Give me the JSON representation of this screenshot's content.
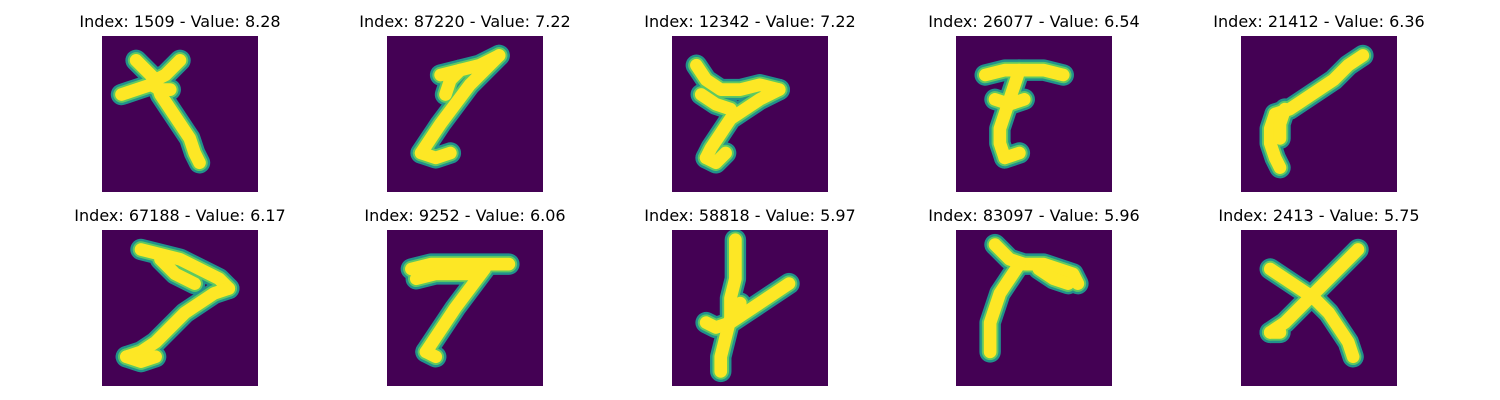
{
  "chart_data": [
    {
      "type": "image",
      "title": "Index: 1509 - Value: 8.28",
      "index": 1509,
      "value": 8.28,
      "glyph": "cross-with-long-tail",
      "strokes": [
        [
          [
            7,
            5
          ],
          [
            9,
            7
          ],
          [
            11,
            9
          ],
          [
            13,
            8
          ],
          [
            15,
            6
          ],
          [
            16,
            5
          ]
        ],
        [
          [
            4,
            12
          ],
          [
            7,
            11
          ],
          [
            10,
            10
          ],
          [
            12,
            11
          ],
          [
            14,
            11
          ]
        ],
        [
          [
            11,
            9
          ],
          [
            12,
            12
          ],
          [
            14,
            15
          ],
          [
            16,
            18
          ],
          [
            18,
            21
          ],
          [
            19,
            24
          ],
          [
            20,
            26
          ]
        ]
      ]
    },
    {
      "type": "image",
      "title": "Index: 87220 - Value: 7.22",
      "index": 87220,
      "value": 7.22,
      "glyph": "slanted-seven",
      "strokes": [
        [
          [
            11,
            8
          ],
          [
            15,
            7
          ],
          [
            19,
            6
          ],
          [
            23,
            4
          ]
        ],
        [
          [
            23,
            4
          ],
          [
            20,
            7
          ],
          [
            17,
            10
          ],
          [
            14,
            14
          ],
          [
            11,
            18
          ],
          [
            9,
            21
          ],
          [
            7,
            24
          ]
        ],
        [
          [
            7,
            24
          ],
          [
            10,
            25
          ],
          [
            13,
            24
          ]
        ],
        [
          [
            15,
            7
          ],
          [
            13,
            9
          ],
          [
            12,
            12
          ]
        ]
      ]
    },
    {
      "type": "image",
      "title": "Index: 12342 - Value: 7.22",
      "index": 12342,
      "value": 7.22,
      "glyph": "cursive-seven",
      "strokes": [
        [
          [
            5,
            6
          ],
          [
            7,
            9
          ],
          [
            10,
            11
          ],
          [
            14,
            11
          ],
          [
            18,
            10
          ],
          [
            22,
            11
          ]
        ],
        [
          [
            22,
            11
          ],
          [
            18,
            13
          ],
          [
            15,
            15
          ],
          [
            12,
            17
          ],
          [
            10,
            20
          ],
          [
            8,
            23
          ],
          [
            7,
            25
          ]
        ],
        [
          [
            7,
            25
          ],
          [
            9,
            26
          ],
          [
            11,
            24
          ]
        ],
        [
          [
            6,
            12
          ],
          [
            9,
            14
          ],
          [
            12,
            15
          ]
        ]
      ]
    },
    {
      "type": "image",
      "title": "Index: 26077 - Value: 6.54",
      "index": 26077,
      "value": 6.54,
      "glyph": "thick-seven",
      "strokes": [
        [
          [
            6,
            8
          ],
          [
            10,
            7
          ],
          [
            14,
            7
          ],
          [
            18,
            7
          ],
          [
            22,
            8
          ]
        ],
        [
          [
            13,
            7
          ],
          [
            12,
            10
          ],
          [
            11,
            13
          ],
          [
            10,
            16
          ],
          [
            9,
            19
          ],
          [
            9,
            22
          ],
          [
            10,
            25
          ]
        ],
        [
          [
            10,
            25
          ],
          [
            13,
            24
          ]
        ],
        [
          [
            8,
            13
          ],
          [
            11,
            14
          ],
          [
            14,
            13
          ]
        ]
      ]
    },
    {
      "type": "image",
      "title": "Index: 21412 - Value: 6.36",
      "index": 21412,
      "value": 6.36,
      "glyph": "diagonal-stroke",
      "strokes": [
        [
          [
            25,
            4
          ],
          [
            22,
            6
          ],
          [
            19,
            9
          ],
          [
            16,
            11
          ],
          [
            13,
            13
          ],
          [
            10,
            15
          ],
          [
            7,
            16
          ]
        ],
        [
          [
            7,
            16
          ],
          [
            6,
            19
          ],
          [
            6,
            22
          ],
          [
            7,
            25
          ],
          [
            8,
            27
          ]
        ],
        [
          [
            9,
            15
          ],
          [
            8,
            18
          ],
          [
            8,
            21
          ]
        ]
      ]
    },
    {
      "type": "image",
      "title": "Index: 67188 - Value: 6.17",
      "index": 67188,
      "value": 6.17,
      "glyph": "bold-seven",
      "strokes": [
        [
          [
            8,
            4
          ],
          [
            12,
            5
          ],
          [
            16,
            6
          ],
          [
            20,
            8
          ],
          [
            24,
            10
          ],
          [
            26,
            12
          ]
        ],
        [
          [
            26,
            12
          ],
          [
            23,
            13
          ],
          [
            20,
            15
          ],
          [
            17,
            17
          ],
          [
            14,
            20
          ],
          [
            11,
            23
          ],
          [
            8,
            25
          ],
          [
            5,
            26
          ]
        ],
        [
          [
            5,
            26
          ],
          [
            8,
            27
          ],
          [
            11,
            26
          ]
        ],
        [
          [
            12,
            6
          ],
          [
            15,
            9
          ],
          [
            19,
            11
          ]
        ]
      ]
    },
    {
      "type": "image",
      "title": "Index: 9252 - Value: 6.06",
      "index": 9252,
      "value": 6.06,
      "glyph": "bar-seven",
      "strokes": [
        [
          [
            5,
            8
          ],
          [
            9,
            7
          ],
          [
            13,
            7
          ],
          [
            17,
            7
          ],
          [
            21,
            7
          ],
          [
            25,
            7
          ]
        ],
        [
          [
            6,
            10
          ],
          [
            10,
            9
          ],
          [
            14,
            9
          ],
          [
            18,
            9
          ]
        ],
        [
          [
            20,
            8
          ],
          [
            17,
            12
          ],
          [
            14,
            16
          ],
          [
            12,
            19
          ],
          [
            10,
            22
          ],
          [
            8,
            25
          ]
        ],
        [
          [
            8,
            25
          ],
          [
            10,
            26
          ]
        ]
      ]
    },
    {
      "type": "image",
      "title": "Index: 58818 - Value: 5.97",
      "index": 58818,
      "value": 5.97,
      "glyph": "crossed-y",
      "strokes": [
        [
          [
            13,
            2
          ],
          [
            13,
            6
          ],
          [
            13,
            10
          ],
          [
            12,
            14
          ],
          [
            12,
            18
          ],
          [
            11,
            22
          ],
          [
            10,
            26
          ],
          [
            10,
            29
          ]
        ],
        [
          [
            24,
            11
          ],
          [
            21,
            13
          ],
          [
            18,
            15
          ],
          [
            15,
            17
          ],
          [
            12,
            19
          ],
          [
            9,
            20
          ],
          [
            7,
            19
          ]
        ],
        [
          [
            14,
            15
          ],
          [
            13,
            18
          ]
        ]
      ]
    },
    {
      "type": "image",
      "title": "Index: 83097 - Value: 5.96",
      "index": 83097,
      "value": 5.96,
      "glyph": "swept-seven",
      "strokes": [
        [
          [
            8,
            3
          ],
          [
            11,
            6
          ],
          [
            14,
            7
          ],
          [
            18,
            7
          ],
          [
            21,
            8
          ],
          [
            24,
            9
          ],
          [
            25,
            11
          ]
        ],
        [
          [
            13,
            7
          ],
          [
            11,
            10
          ],
          [
            9,
            13
          ],
          [
            8,
            16
          ],
          [
            7,
            19
          ],
          [
            7,
            22
          ],
          [
            7,
            25
          ]
        ],
        [
          [
            17,
            8
          ],
          [
            20,
            10
          ],
          [
            23,
            11
          ]
        ]
      ]
    },
    {
      "type": "image",
      "title": "Index: 2413 - Value: 5.75",
      "index": 2413,
      "value": 5.75,
      "glyph": "x-shape",
      "strokes": [
        [
          [
            6,
            8
          ],
          [
            9,
            10
          ],
          [
            12,
            12
          ],
          [
            15,
            14
          ],
          [
            18,
            17
          ],
          [
            20,
            20
          ],
          [
            22,
            23
          ],
          [
            23,
            26
          ]
        ],
        [
          [
            24,
            4
          ],
          [
            21,
            7
          ],
          [
            18,
            10
          ],
          [
            15,
            13
          ],
          [
            12,
            16
          ],
          [
            9,
            19
          ],
          [
            6,
            21
          ]
        ],
        [
          [
            6,
            21
          ],
          [
            8,
            21
          ]
        ]
      ]
    }
  ]
}
